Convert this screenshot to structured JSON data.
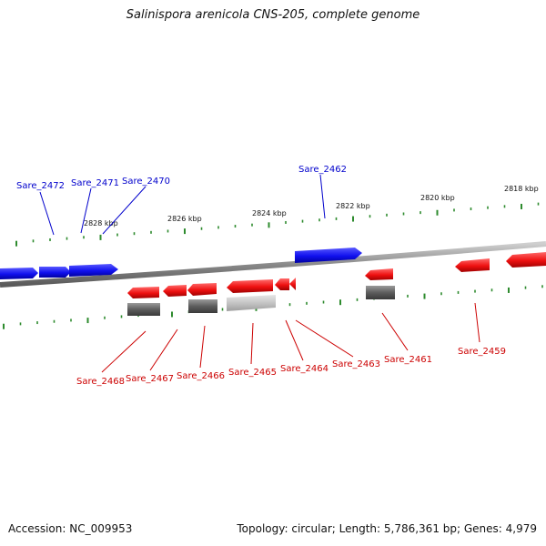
{
  "title": "Salinispora arenicola CNS-205, complete genome",
  "footer": {
    "accession": "Accession: NC_009953",
    "summary": "Topology: circular; Length: 5,786,361 bp; Genes: 4,979"
  },
  "colors": {
    "forward_gene": "#1a1aff",
    "reverse_gene": "#ff1a1a",
    "forward_label": "#0000cc",
    "reverse_label": "#cc0000",
    "ticks": "#2e8b2e",
    "backbone": "#808080"
  },
  "scale_labels": [
    "2828 kbp",
    "2826 kbp",
    "2824 kbp",
    "2822 kbp",
    "2820 kbp",
    "2818 kbp"
  ],
  "forward_genes": [
    "Sare_2472",
    "Sare_2471",
    "Sare_2470",
    "Sare_2462"
  ],
  "reverse_genes": [
    "Sare_2468",
    "Sare_2467",
    "Sare_2466",
    "Sare_2465",
    "Sare_2464",
    "Sare_2463",
    "Sare_2461",
    "Sare_2459"
  ]
}
